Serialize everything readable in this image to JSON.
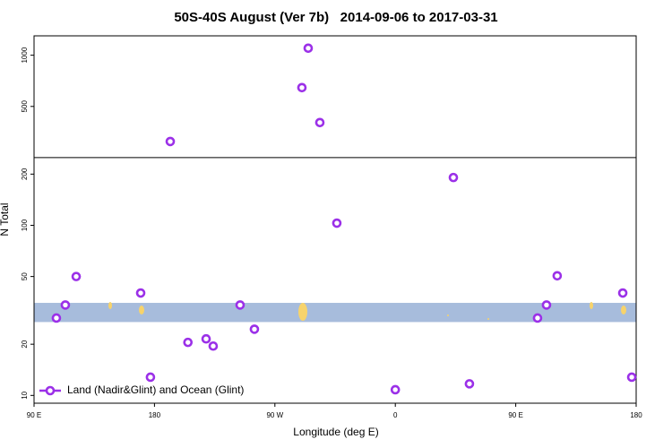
{
  "chart_data": {
    "type": "scatter",
    "title": "50S-40S August (Ver 7b)   2014-09-06 to 2017-03-31",
    "xlabel": "Longitude (deg E)",
    "ylabel": "N Total",
    "xlim": [
      90,
      540
    ],
    "xticks": [
      {
        "value": 90,
        "label": "90 E"
      },
      180,
      {
        "value": 270,
        "label": "90 W"
      },
      {
        "value": 360,
        "label": "0"
      },
      {
        "value": 450,
        "label": "90 E"
      },
      {
        "value": 540,
        "label": "180"
      }
    ],
    "ylim": [
      9,
      1300
    ],
    "yscale": "log",
    "yticks": [
      10,
      20,
      50,
      100,
      200,
      500,
      1000
    ],
    "break": 250,
    "band": {
      "range": [
        27,
        35
      ],
      "color": "#a7bcdc"
    },
    "legend": "bottom-left",
    "series": [
      {
        "name": "Land (Nadir&Glint) and Ocean (Glint)",
        "color": "#9b30e8",
        "x": [
          106.7,
          113.4,
          121.5,
          169.7,
          177,
          191.8,
          205,
          218.6,
          223.9,
          244,
          254.7,
          290.2,
          294.9,
          303.6,
          316.3,
          360,
          403.4,
          415.4,
          466.3,
          473,
          481,
          530,
          536.7
        ],
        "values": [
          28.5,
          34,
          50,
          40,
          12.8,
          311,
          20.5,
          21.5,
          19.5,
          34,
          24.5,
          645,
          1100,
          402,
          103,
          10.8,
          191,
          11.7,
          28.5,
          34,
          50.5,
          40,
          12.8
        ]
      }
    ]
  }
}
